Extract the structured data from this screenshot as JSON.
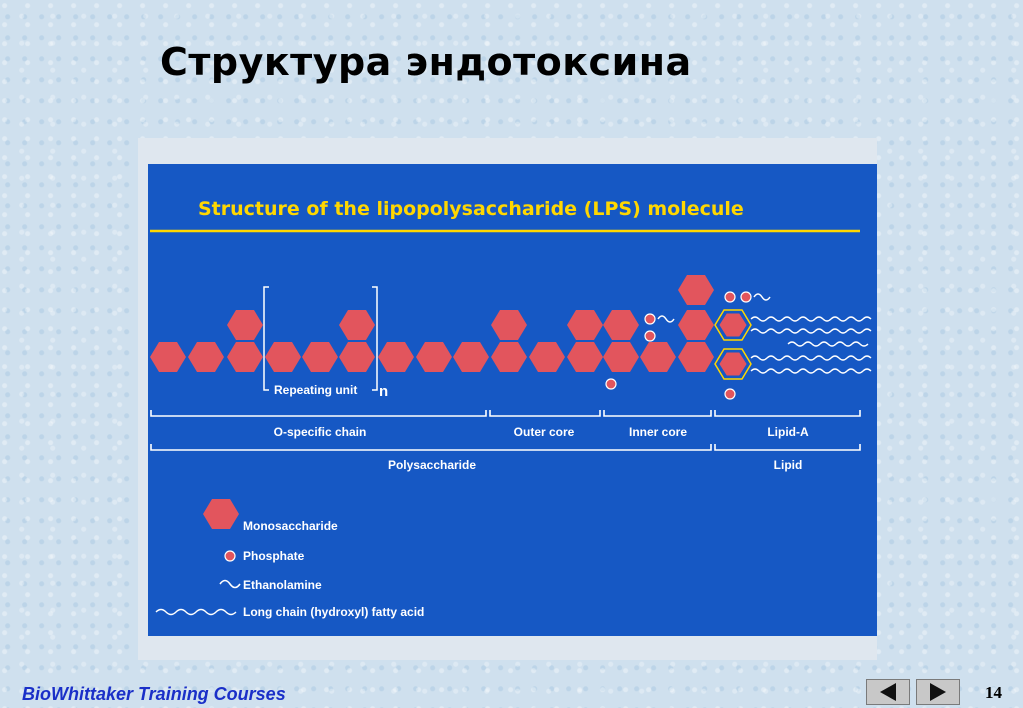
{
  "page_title": "Структура эндотоксина",
  "diagram": {
    "title": "Structure of the lipopolysaccharide (LPS) molecule",
    "repeat_label": "Repeating unit",
    "repeat_n": "n",
    "regions": {
      "o_chain": "O-specific chain",
      "outer_core": "Outer core",
      "inner_core": "Inner core",
      "lipid_a": "Lipid-A",
      "polysaccharide": "Polysaccharide",
      "lipid": "Lipid"
    },
    "legend": {
      "monosaccharide": "Monosaccharide",
      "phosphate": "Phosphate",
      "ethanolamine": "Ethanolamine",
      "fatty_acid": "Long chain (hydroxyl) fatty acid"
    },
    "colors": {
      "panel": "#1658c4",
      "hexagon": "#e2555d",
      "text": "#ffffff",
      "title": "#ffd700"
    }
  },
  "footer": {
    "text": "BioWhittaker Training Courses",
    "page_number": "14",
    "prev_icon": "triangle-left-icon",
    "next_icon": "triangle-right-icon"
  }
}
